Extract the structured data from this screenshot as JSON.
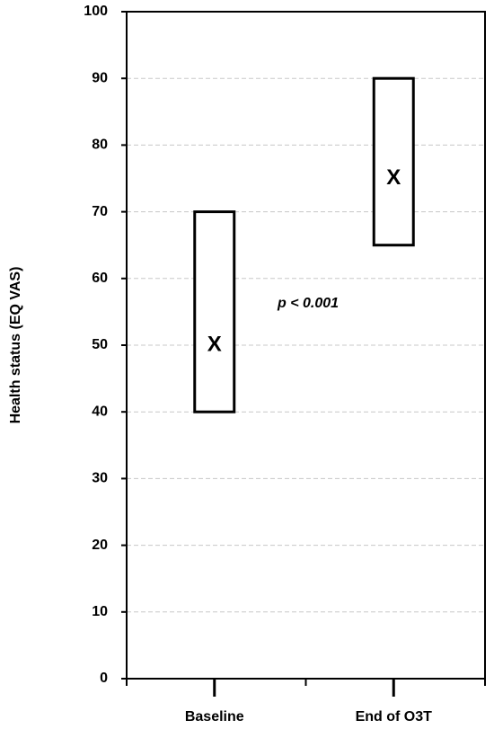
{
  "chart_data": {
    "type": "floating-bar",
    "y_label": "Health status (EQ VAS)",
    "categories": [
      "Baseline",
      "End of O3T"
    ],
    "low": [
      40,
      65
    ],
    "high": [
      70,
      90
    ],
    "mean": [
      50,
      75
    ],
    "marker": "X",
    "annotation": "p < 0.001",
    "ylim": [
      0,
      100
    ],
    "yticks": [
      0,
      10,
      20,
      30,
      40,
      50,
      60,
      70,
      80,
      90,
      100
    ],
    "grid": true,
    "color": "#000000"
  }
}
